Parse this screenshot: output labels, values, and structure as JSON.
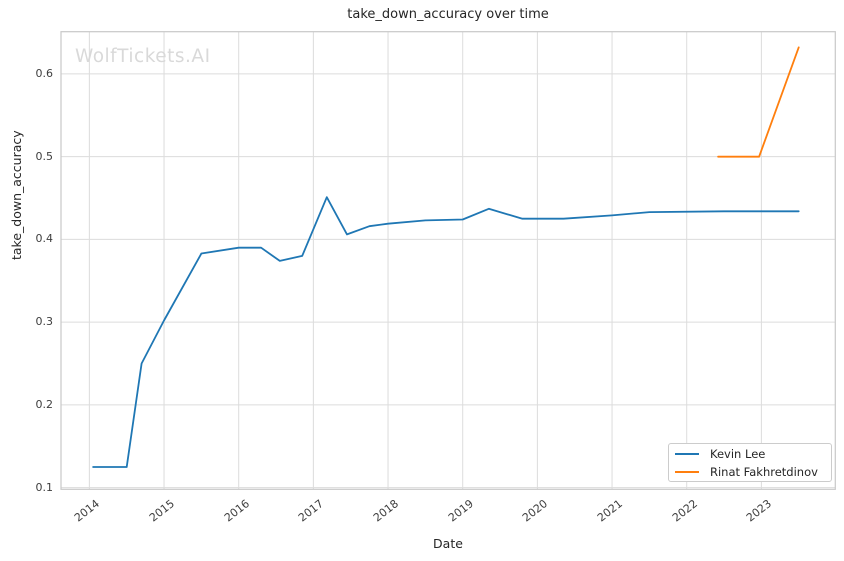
{
  "watermark": "WolfTickets.AI",
  "chart_data": {
    "type": "line",
    "title": "take_down_accuracy over time",
    "xlabel": "Date",
    "ylabel": "take_down_accuracy",
    "grid": true,
    "legend_position": "lower right",
    "xlim": [
      2013.62,
      2023.99
    ],
    "ylim": [
      0.098,
      0.651
    ],
    "xtick_values": [
      2014,
      2015,
      2016,
      2017,
      2018,
      2019,
      2020,
      2021,
      2022,
      2023
    ],
    "xtick_labels": [
      "2014",
      "2015",
      "2016",
      "2017",
      "2018",
      "2019",
      "2020",
      "2021",
      "2022",
      "2023"
    ],
    "ytick_values": [
      0.1,
      0.2,
      0.3,
      0.4,
      0.5,
      0.6
    ],
    "ytick_labels": [
      "0.1",
      "0.2",
      "0.3",
      "0.4",
      "0.5",
      "0.6"
    ],
    "series": [
      {
        "name": "Kevin Lee",
        "color": "#1f77b4",
        "points": [
          [
            2014.05,
            0.125
          ],
          [
            2014.5,
            0.125
          ],
          [
            2014.7,
            0.25
          ],
          [
            2015.0,
            0.302
          ],
          [
            2015.5,
            0.383
          ],
          [
            2016.0,
            0.39
          ],
          [
            2016.3,
            0.39
          ],
          [
            2016.55,
            0.374
          ],
          [
            2016.85,
            0.38
          ],
          [
            2017.18,
            0.451
          ],
          [
            2017.45,
            0.406
          ],
          [
            2017.75,
            0.416
          ],
          [
            2018.0,
            0.419
          ],
          [
            2018.5,
            0.423
          ],
          [
            2019.0,
            0.424
          ],
          [
            2019.35,
            0.437
          ],
          [
            2019.8,
            0.425
          ],
          [
            2020.35,
            0.425
          ],
          [
            2021.0,
            0.429
          ],
          [
            2021.5,
            0.433
          ],
          [
            2022.5,
            0.434
          ],
          [
            2023.5,
            0.434
          ]
        ]
      },
      {
        "name": "Rinat Fakhretdinov",
        "color": "#ff7f0e",
        "points": [
          [
            2022.42,
            0.5
          ],
          [
            2022.97,
            0.5
          ],
          [
            2023.5,
            0.632
          ]
        ]
      }
    ],
    "style": {
      "grid_color": "#dcdcdc",
      "spine_color": "#c8c8c8",
      "line_width": 1.8
    }
  }
}
